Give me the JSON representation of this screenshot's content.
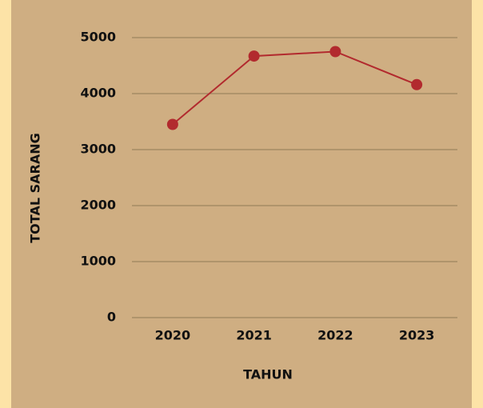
{
  "chart_data": {
    "type": "line",
    "x_label": "TAHUN",
    "y_label": "TOTAL SARANG",
    "categories": [
      "2020",
      "2021",
      "2022",
      "2023"
    ],
    "values": [
      3450,
      4670,
      4750,
      4160
    ],
    "color": "#b22a2e",
    "ylim": [
      0,
      5000
    ],
    "yticks": [
      0,
      1000,
      2000,
      3000,
      4000,
      5000
    ],
    "grid": true
  }
}
